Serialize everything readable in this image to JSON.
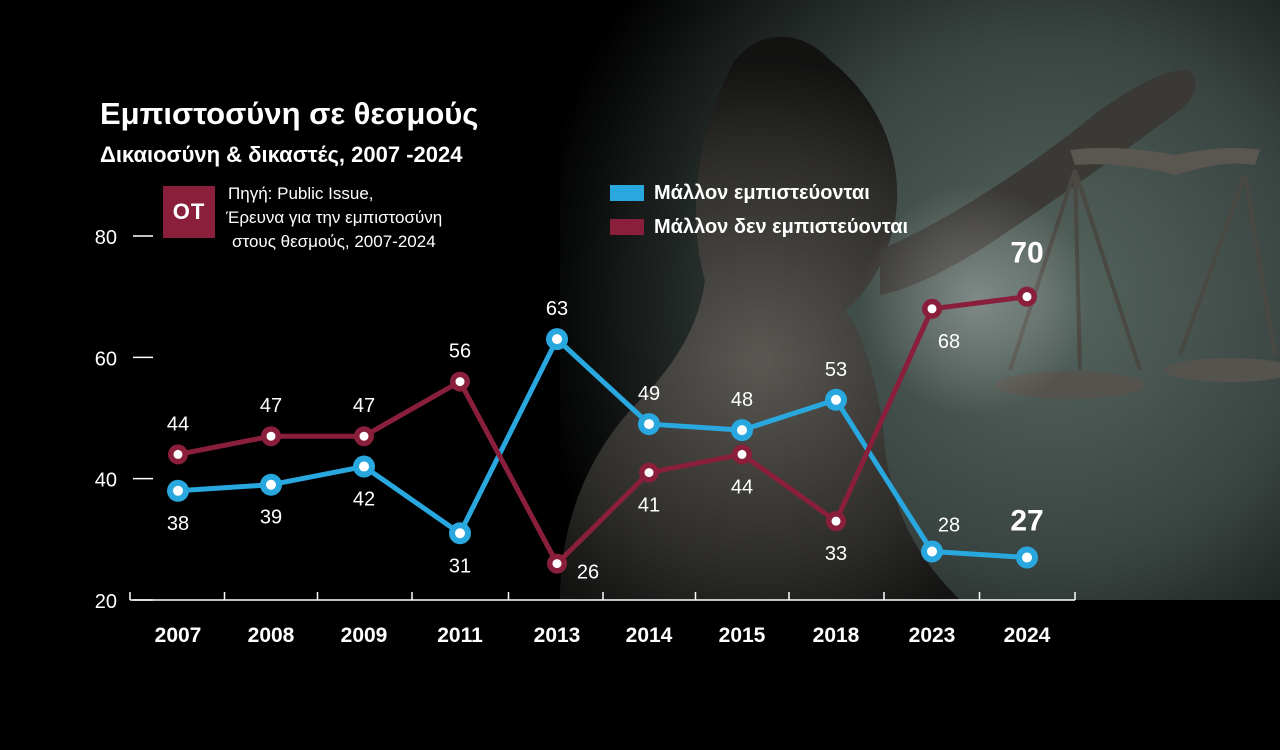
{
  "header": {
    "title": "Εμπιστοσύνη σε θεσμούς",
    "subtitle": "Δικαιοσύνη & δικαστές, 2007 -2024"
  },
  "source": {
    "logo_text": "OT",
    "lines": [
      "Πηγή: Public Issue,",
      "Έρευνα για την εμπιστοσύνη",
      "στους θεσμούς, 2007-2024"
    ]
  },
  "colors": {
    "trust": "#29a8e0",
    "distrust": "#8a1f3c",
    "logo": "#8a1f3c"
  },
  "chart_data": {
    "type": "line",
    "title": "Εμπιστοσύνη σε θεσμούς",
    "subtitle": "Δικαιοσύνη & δικαστές, 2007 -2024",
    "categories": [
      "2007",
      "2008",
      "2009",
      "2011",
      "2013",
      "2014",
      "2015",
      "2018",
      "2023",
      "2024"
    ],
    "series": [
      {
        "name": "Μάλλον εμπιστεύονται",
        "values": [
          38,
          39,
          42,
          31,
          63,
          49,
          48,
          53,
          28,
          27
        ]
      },
      {
        "name": "Μάλλον δεν εμπιστεύονται",
        "values": [
          44,
          47,
          47,
          56,
          26,
          41,
          44,
          33,
          68,
          70
        ]
      }
    ],
    "yticks": [
      20,
      40,
      60,
      80
    ],
    "ylim": [
      20,
      80
    ],
    "grid": false,
    "legend_position": "top-center"
  }
}
